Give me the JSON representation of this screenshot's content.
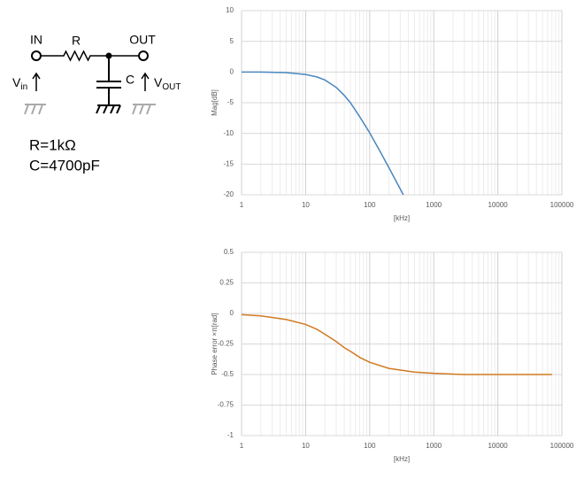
{
  "circuit": {
    "input": "IN",
    "output": "OUT",
    "resistor": "R",
    "capacitor": "C",
    "vin": {
      "main": "V",
      "sub": "in"
    },
    "vout": {
      "main": "V",
      "sub": "OUT"
    },
    "r_value": "R=1kΩ",
    "c_value": "C=4700pF"
  },
  "chart_data": [
    {
      "type": "line",
      "x_label": "[kHz]",
      "y_label": "Mag[dB]",
      "log_x": true,
      "grid": true,
      "x": [
        1,
        2,
        5,
        10,
        15,
        20,
        30,
        40,
        50,
        70,
        100,
        150,
        200,
        335
      ],
      "series": [
        {
          "name": "Mag",
          "color": "#4a86c0",
          "values": [
            0.0,
            0.0,
            -0.1,
            -0.4,
            -0.8,
            -1.3,
            -2.5,
            -3.8,
            -5.0,
            -7.3,
            -9.9,
            -13.2,
            -15.6,
            -20.0
          ]
        }
      ],
      "xlim": [
        1,
        100000
      ],
      "xticks": [
        1,
        10,
        100,
        1000,
        10000,
        100000
      ],
      "ylim": [
        -20,
        10
      ],
      "yticks": [
        10,
        5,
        0,
        -5,
        -10,
        -15,
        -20
      ]
    },
    {
      "type": "line",
      "x_label": "[kHz]",
      "y_label": "Phase error ×π[rad]",
      "log_x": true,
      "grid": true,
      "x": [
        1,
        2,
        5,
        10,
        15,
        20,
        30,
        40,
        50,
        70,
        100,
        200,
        500,
        1000,
        3000,
        10000,
        70000
      ],
      "series": [
        {
          "name": "Phase error",
          "color": "#d07a22",
          "values": [
            -0.01,
            -0.02,
            -0.05,
            -0.09,
            -0.13,
            -0.17,
            -0.23,
            -0.28,
            -0.31,
            -0.36,
            -0.4,
            -0.45,
            -0.48,
            -0.49,
            -0.5,
            -0.5,
            -0.5
          ]
        }
      ],
      "xlim": [
        1,
        100000
      ],
      "xticks": [
        1,
        10,
        100,
        1000,
        10000,
        100000
      ],
      "ylim": [
        -1,
        0.5
      ],
      "yticks": [
        0.5,
        0.25,
        0,
        -0.25,
        -0.5,
        -0.75,
        -1
      ]
    }
  ]
}
